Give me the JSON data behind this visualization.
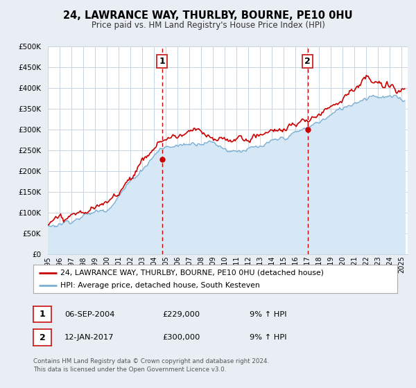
{
  "title": "24, LAWRANCE WAY, THURLBY, BOURNE, PE10 0HU",
  "subtitle": "Price paid vs. HM Land Registry's House Price Index (HPI)",
  "background_color": "#e8eef4",
  "plot_bg_color": "#ffffff",
  "grid_color": "#c8d4e0",
  "ylim": [
    0,
    500000
  ],
  "yticks": [
    0,
    50000,
    100000,
    150000,
    200000,
    250000,
    300000,
    350000,
    400000,
    450000,
    500000
  ],
  "ytick_labels": [
    "£0",
    "£50K",
    "£100K",
    "£150K",
    "£200K",
    "£250K",
    "£300K",
    "£350K",
    "£400K",
    "£450K",
    "£500K"
  ],
  "xlim_start": 1995.0,
  "xlim_end": 2025.5,
  "xticks": [
    1995,
    1996,
    1997,
    1998,
    1999,
    2000,
    2001,
    2002,
    2003,
    2004,
    2005,
    2006,
    2007,
    2008,
    2009,
    2010,
    2011,
    2012,
    2013,
    2014,
    2015,
    2016,
    2017,
    2018,
    2019,
    2020,
    2021,
    2022,
    2023,
    2024,
    2025
  ],
  "red_line_color": "#cc0000",
  "blue_line_color": "#7bafd4",
  "marker1_x": 2004.67,
  "marker1_y": 229000,
  "marker2_x": 2017.03,
  "marker2_y": 300000,
  "vline1_x": 2004.67,
  "vline2_x": 2017.03,
  "legend_label1": "24, LAWRANCE WAY, THURLBY, BOURNE, PE10 0HU (detached house)",
  "legend_label2": "HPI: Average price, detached house, South Kesteven",
  "annotation1_label": "1",
  "annotation2_label": "2",
  "table_row1": [
    "1",
    "06-SEP-2004",
    "£229,000",
    "9% ↑ HPI"
  ],
  "table_row2": [
    "2",
    "12-JAN-2017",
    "£300,000",
    "9% ↑ HPI"
  ],
  "footer_text": "Contains HM Land Registry data © Crown copyright and database right 2024.\nThis data is licensed under the Open Government Licence v3.0.",
  "hpi_shaded_color": "#d6e8f5"
}
